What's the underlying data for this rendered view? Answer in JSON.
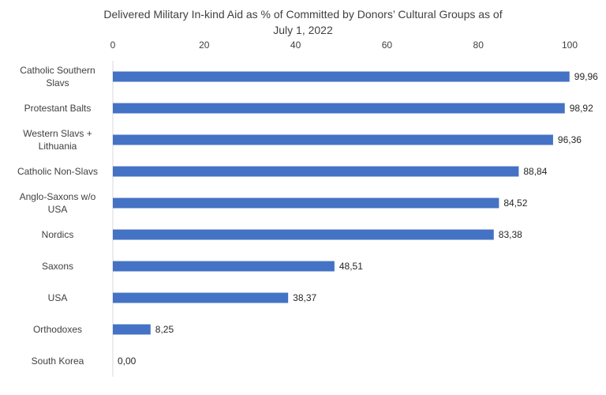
{
  "chart_data": {
    "type": "bar",
    "orientation": "horizontal",
    "title_lines": [
      "Delivered Military In-kind Aid as % of Committed by Donors’ Cultural Groups as of",
      "July 1, 2022"
    ],
    "categories": [
      [
        "Catholic Southern",
        "Slavs"
      ],
      [
        "Protestant Balts"
      ],
      [
        "Western Slavs +",
        "Lithuania"
      ],
      [
        "Catholic Non-Slavs"
      ],
      [
        "Anglo-Saxons w/o",
        "USA"
      ],
      [
        "Nordics"
      ],
      [
        "Saxons"
      ],
      [
        "USA"
      ],
      [
        "Orthodoxes"
      ],
      [
        "South Korea"
      ]
    ],
    "values": [
      99.96,
      98.92,
      96.36,
      88.84,
      84.52,
      83.38,
      48.51,
      38.37,
      8.25,
      0.0
    ],
    "value_labels": [
      "99,96",
      "98,92",
      "96,36",
      "88,84",
      "84,52",
      "83,38",
      "48,51",
      "38,37",
      "8,25",
      "0,00"
    ],
    "xlim": [
      0,
      100
    ],
    "xticks": [
      0,
      20,
      40,
      60,
      80,
      100
    ],
    "xtick_labels": [
      "0",
      "20",
      "40",
      "60",
      "80",
      "100"
    ],
    "x_axis_position": "top",
    "grid": false,
    "legend": "none",
    "bar_color": "#4472C4"
  }
}
